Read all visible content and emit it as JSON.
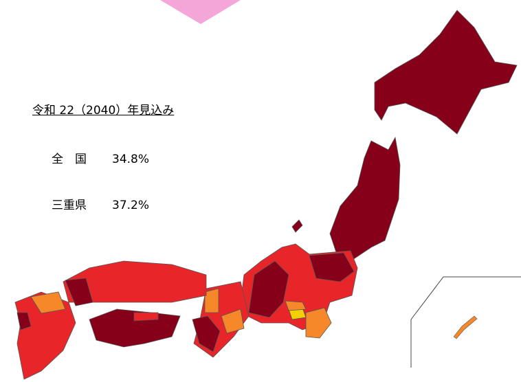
{
  "title": "令和 22（2040）年見込み",
  "rows": [
    {
      "label": "全　国",
      "value": "34.8%"
    },
    {
      "label": "三重県",
      "value": "37.2%"
    }
  ]
}
